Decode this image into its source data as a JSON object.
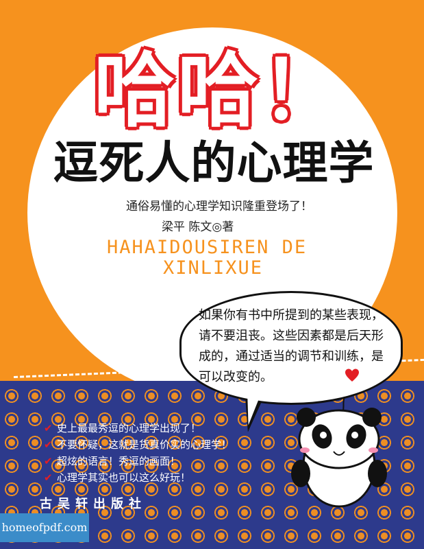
{
  "cover": {
    "title_top": "哈哈！",
    "title_main": "逗死人的心理学",
    "subtitle": "通俗易懂的心理学知识隆重登场了！",
    "authors": "梁平  陈文◎著",
    "pinyin_line1": "HAHAIDOUSIREN DE",
    "pinyin_line2": "XINLIXUE",
    "bubble_text": "如果你有书中所提到的某些表现，请不要沮丧。这些因素都是后天形成的，通过适当的调节和训练，是可以改变的。",
    "list": [
      "史上最最秀逗的心理学出现了！",
      "不要怀疑，这就是货真价实的心理学！",
      "超炫的语言！秀逗的画面！",
      "心理学其实也可以这么好玩！"
    ],
    "publisher": "古吴轩出版社",
    "watermark": "homeofpdf.com"
  },
  "colors": {
    "orange": "#f6921e",
    "blue": "#2d3a8c",
    "red": "#e31e24",
    "watermark_blue": "#3b8cc9"
  },
  "icons": {
    "check": "check-icon",
    "heart": "heart-icon",
    "panda": "panda-illustration"
  }
}
